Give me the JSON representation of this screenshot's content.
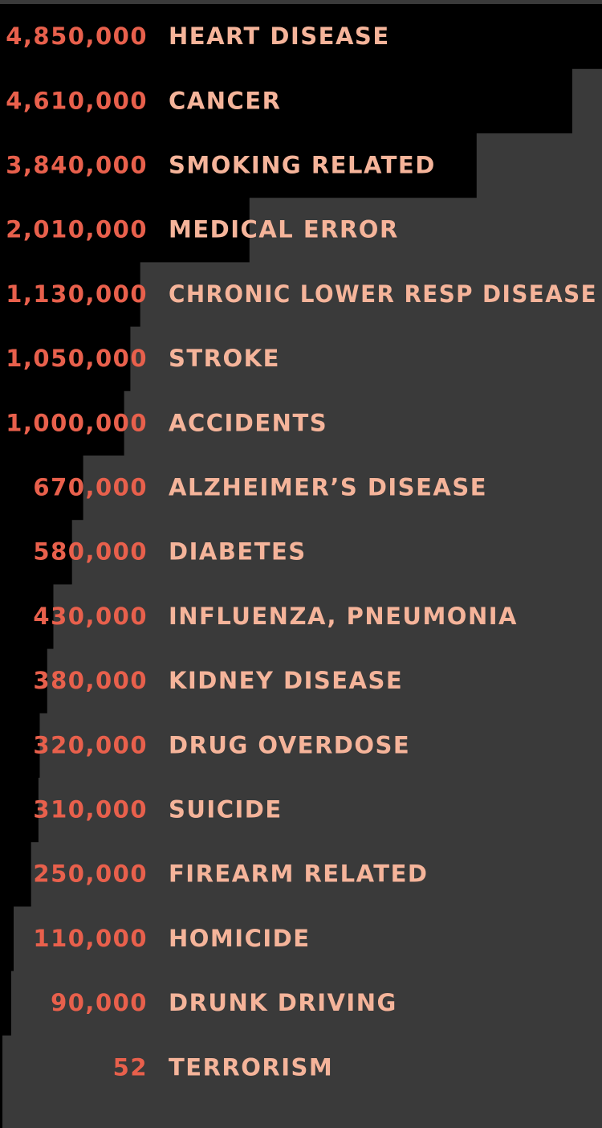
{
  "chart_data": {
    "type": "bar",
    "title": "",
    "xlabel": "",
    "ylabel": "",
    "categories": [
      "HEART DISEASE",
      "CANCER",
      "SMOKING RELATED",
      "MEDICAL ERROR",
      "CHRONIC LOWER RESP DISEASE",
      "STROKE",
      "ACCIDENTS",
      "ALZHEIMER’S DISEASE",
      "DIABETES",
      "INFLUENZA, PNEUMONIA",
      "KIDNEY DISEASE",
      "DRUG OVERDOSE",
      "SUICIDE",
      "FIREARM RELATED",
      "HOMICIDE",
      "DRUNK DRIVING",
      "TERRORISM"
    ],
    "values": [
      4850000,
      4610000,
      3840000,
      2010000,
      1130000,
      1050000,
      1000000,
      670000,
      580000,
      430000,
      380000,
      320000,
      310000,
      250000,
      110000,
      90000,
      52
    ],
    "value_labels": [
      "4,850,000",
      "4,610,000",
      "3,840,000",
      "2,010,000",
      "1,130,000",
      "1,050,000",
      "1,000,000",
      "670,000",
      "580,000",
      "430,000",
      "380,000",
      "320,000",
      "310,000",
      "250,000",
      "110,000",
      "90,000",
      "52"
    ],
    "orientation": "horizontal",
    "sorted": "descending",
    "grid": false,
    "legend": "none",
    "colors": {
      "background": "#3a3a3a",
      "bar": "#000000",
      "value_text": "#e8604c",
      "label_text": "#f5b49a",
      "top_border": "#3a3a3a"
    }
  }
}
